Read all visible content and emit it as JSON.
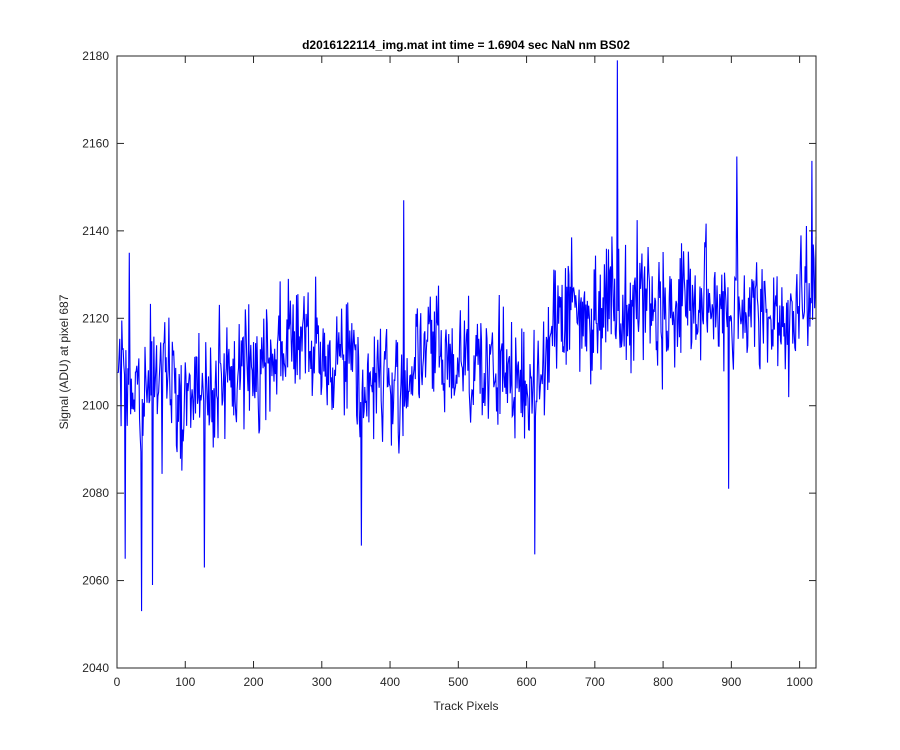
{
  "chart_data": {
    "type": "line",
    "title": "d2016122114_img.mat int time = 1.6904 sec  NaN nm BS02",
    "xlabel": "Track Pixels",
    "ylabel": "Signal (ADU) at pixel 687",
    "xlim": [
      0,
      1024
    ],
    "ylim": [
      2040,
      2180
    ],
    "xticks": [
      0,
      100,
      200,
      300,
      400,
      500,
      600,
      700,
      800,
      900,
      1000
    ],
    "yticks": [
      2040,
      2060,
      2080,
      2100,
      2120,
      2140,
      2160,
      2180
    ],
    "grid": false,
    "line_color": "#0000ff",
    "series": [
      {
        "x": [
          1,
          10,
          20,
          30,
          40,
          50,
          60,
          70,
          80,
          90,
          100,
          110,
          120,
          130,
          140,
          150,
          160,
          170,
          180,
          190,
          200,
          210,
          220,
          230,
          240,
          250,
          260,
          270,
          280,
          290,
          300,
          310,
          320,
          330,
          340,
          350,
          360,
          370,
          380,
          390,
          400,
          410,
          420,
          430,
          440,
          450,
          460,
          470,
          480,
          490,
          500,
          510,
          520,
          530,
          540,
          550,
          560,
          570,
          580,
          590,
          600,
          610,
          620,
          630,
          640,
          650,
          660,
          670,
          680,
          690,
          700,
          710,
          720,
          730,
          740,
          750,
          760,
          770,
          780,
          790,
          800,
          810,
          820,
          830,
          840,
          850,
          860,
          870,
          880,
          890,
          900,
          910,
          920,
          930,
          940,
          950,
          960,
          970,
          980,
          990,
          1000,
          1010,
          1020
        ],
        "y": [
          2110,
          2108,
          2100,
          2102,
          2095,
          2105,
          2104,
          2103,
          2106,
          2100,
          2105,
          2102,
          2103,
          2101,
          2104,
          2108,
          2102,
          2106,
          2108,
          2110,
          2109,
          2108,
          2112,
          2113,
          2114,
          2116,
          2117,
          2115,
          2113,
          2111,
          2109,
          2110,
          2112,
          2114,
          2113,
          2108,
          2103,
          2104,
          2106,
          2108,
          2104,
          2100,
          2106,
          2108,
          2110,
          2112,
          2114,
          2113,
          2110,
          2108,
          2112,
          2113,
          2110,
          2111,
          2107,
          2105,
          2108,
          2110,
          2106,
          2104,
          2100,
          2105,
          2110,
          2113,
          2120,
          2123,
          2122,
          2123,
          2120,
          2118,
          2122,
          2124,
          2125,
          2126,
          2122,
          2124,
          2126,
          2124,
          2125,
          2122,
          2122,
          2120,
          2122,
          2125,
          2124,
          2121,
          2124,
          2122,
          2123,
          2125,
          2120,
          2124,
          2122,
          2126,
          2120,
          2118,
          2120,
          2122,
          2118,
          2120,
          2122,
          2125,
          2124
        ],
        "noise_amplitude": 11,
        "spikes": [
          {
            "x": 12,
            "y": 2065
          },
          {
            "x": 18,
            "y": 2135
          },
          {
            "x": 36,
            "y": 2053
          },
          {
            "x": 52,
            "y": 2059
          },
          {
            "x": 128,
            "y": 2063
          },
          {
            "x": 358,
            "y": 2068
          },
          {
            "x": 420,
            "y": 2147
          },
          {
            "x": 612,
            "y": 2066
          },
          {
            "x": 733,
            "y": 2179
          },
          {
            "x": 896,
            "y": 2081
          },
          {
            "x": 908,
            "y": 2157
          },
          {
            "x": 1018,
            "y": 2156
          }
        ]
      }
    ]
  }
}
